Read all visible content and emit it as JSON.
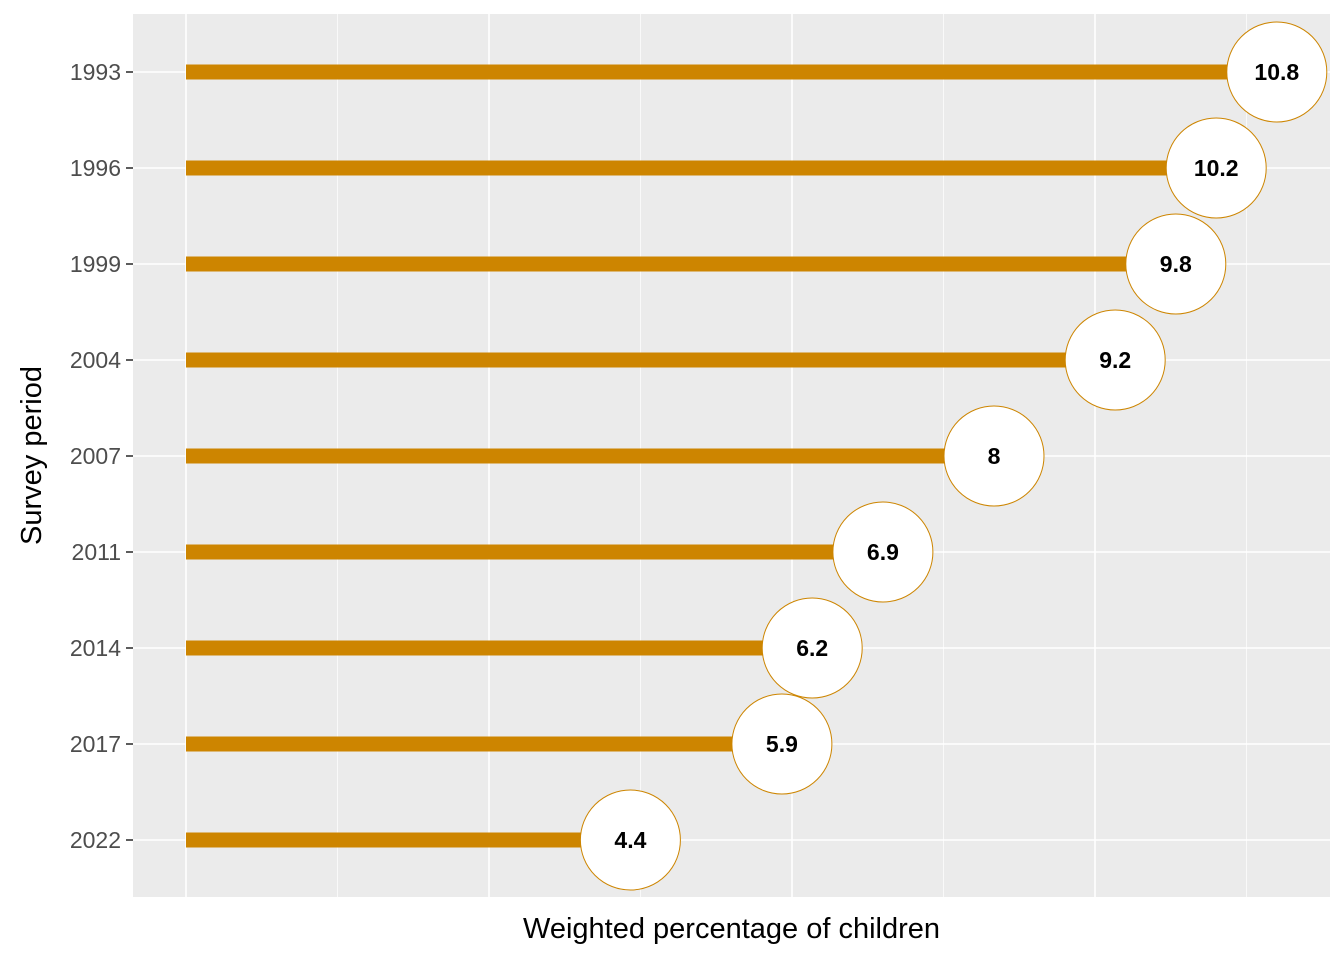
{
  "chart_data": {
    "type": "bar",
    "orientation": "horizontal",
    "style": "lollipop",
    "categories": [
      "1993",
      "1996",
      "1999",
      "2004",
      "2007",
      "2011",
      "2014",
      "2017",
      "2022"
    ],
    "values": [
      10.8,
      10.2,
      9.8,
      9.2,
      8,
      6.9,
      6.2,
      5.9,
      4.4
    ],
    "value_labels": [
      "10.8",
      "10.2",
      "9.8",
      "9.2",
      "8",
      "6.9",
      "6.2",
      "5.9",
      "4.4"
    ],
    "xlabel": "Weighted percentage of children",
    "ylabel": "Survey period",
    "xlim": [
      0,
      11.3
    ],
    "x_tick_labels_shown": false,
    "grid": true,
    "legend": "none",
    "colors": {
      "bar": "#CD8500",
      "circle_fill": "#FFFFFF",
      "circle_stroke": "#CD8500",
      "panel": "#EBEBEB",
      "grid": "#FFFFFF",
      "tick": "#333333"
    }
  }
}
